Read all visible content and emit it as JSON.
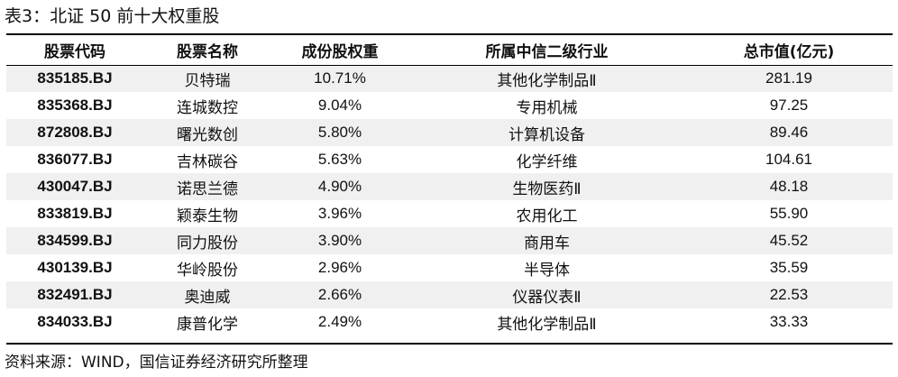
{
  "title": "表3：北证 50 前十大权重股",
  "table": {
    "headers": [
      "股票代码",
      "股票名称",
      "成份股权重",
      "所属中信二级行业",
      "总市值(亿元)"
    ],
    "rows": [
      [
        "835185.BJ",
        "贝特瑞",
        "10.71%",
        "其他化学制品Ⅱ",
        "281.19"
      ],
      [
        "835368.BJ",
        "连城数控",
        "9.04%",
        "专用机械",
        "97.25"
      ],
      [
        "872808.BJ",
        "曙光数创",
        "5.80%",
        "计算机设备",
        "89.46"
      ],
      [
        "836077.BJ",
        "吉林碳谷",
        "5.63%",
        "化学纤维",
        "104.61"
      ],
      [
        "430047.BJ",
        "诺思兰德",
        "4.90%",
        "生物医药Ⅱ",
        "48.18"
      ],
      [
        "833819.BJ",
        "颖泰生物",
        "3.96%",
        "农用化工",
        "55.90"
      ],
      [
        "834599.BJ",
        "同力股份",
        "3.90%",
        "商用车",
        "45.52"
      ],
      [
        "430139.BJ",
        "华岭股份",
        "2.96%",
        "半导体",
        "35.59"
      ],
      [
        "832491.BJ",
        "奥迪威",
        "2.66%",
        "仪器仪表Ⅱ",
        "22.53"
      ],
      [
        "834033.BJ",
        "康普化学",
        "2.49%",
        "其他化学制品Ⅱ",
        "33.33"
      ]
    ]
  },
  "source": "资料来源：WIND，国信证券经济研究所整理"
}
